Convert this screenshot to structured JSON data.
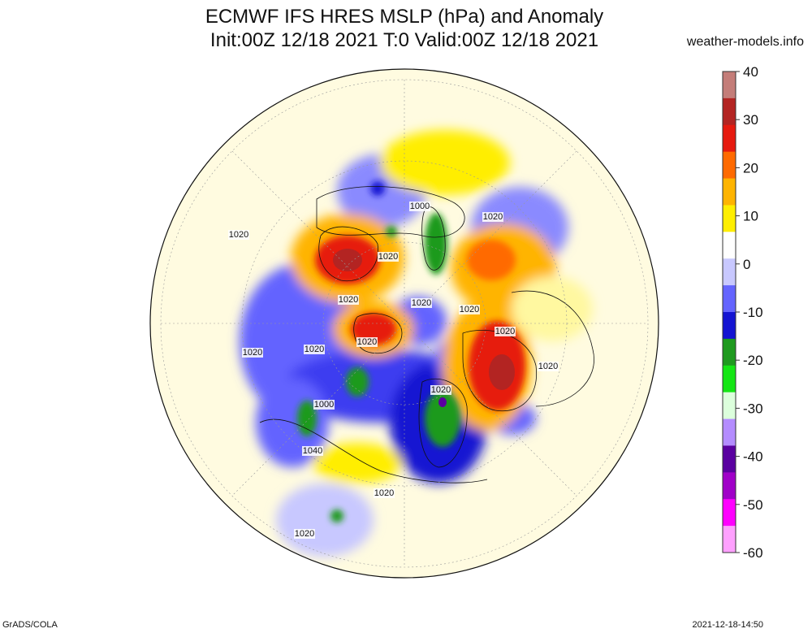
{
  "header": {
    "title_line1": "ECMWF IFS HRES MSLP (hPa) and Anomaly",
    "title_line2": "Init:00Z 12/18 2021 T:0 Valid:00Z 12/18 2021",
    "site": "weather-models.info"
  },
  "footer": {
    "left": "GrADS/COLA",
    "right": "2021-12-18-14:50"
  },
  "colorbar": {
    "labels": [
      "40",
      "30",
      "20",
      "10",
      "0",
      "-10",
      "-20",
      "-30",
      "-40",
      "-50",
      "-60"
    ],
    "colors": [
      "#c47d79",
      "#b32422",
      "#e61a0f",
      "#ff6a00",
      "#ffb400",
      "#ffee00",
      "#ffffff",
      "#c8c8ff",
      "#6464ff",
      "#1414d2",
      "#1e9a1e",
      "#14e614",
      "#dcffdc",
      "#b48cff",
      "#5a00a0",
      "#a000c8",
      "#ff00ff",
      "#ffa0ff"
    ]
  },
  "map": {
    "isobar_labels": [
      "1020",
      "1020",
      "1000",
      "1020",
      "1020",
      "1020",
      "1020",
      "1020",
      "1020",
      "1020",
      "1020",
      "1020",
      "1020",
      "1000",
      "1040",
      "1020",
      "1020"
    ],
    "colors": {
      "strong_high": "#b32422",
      "high": "#e61a0f",
      "mid_high": "#ffb400",
      "weak_high": "#ffee00",
      "weak_low": "#c8c8ff",
      "low": "#1414d2",
      "deep_low": "#1e9a1e"
    }
  }
}
